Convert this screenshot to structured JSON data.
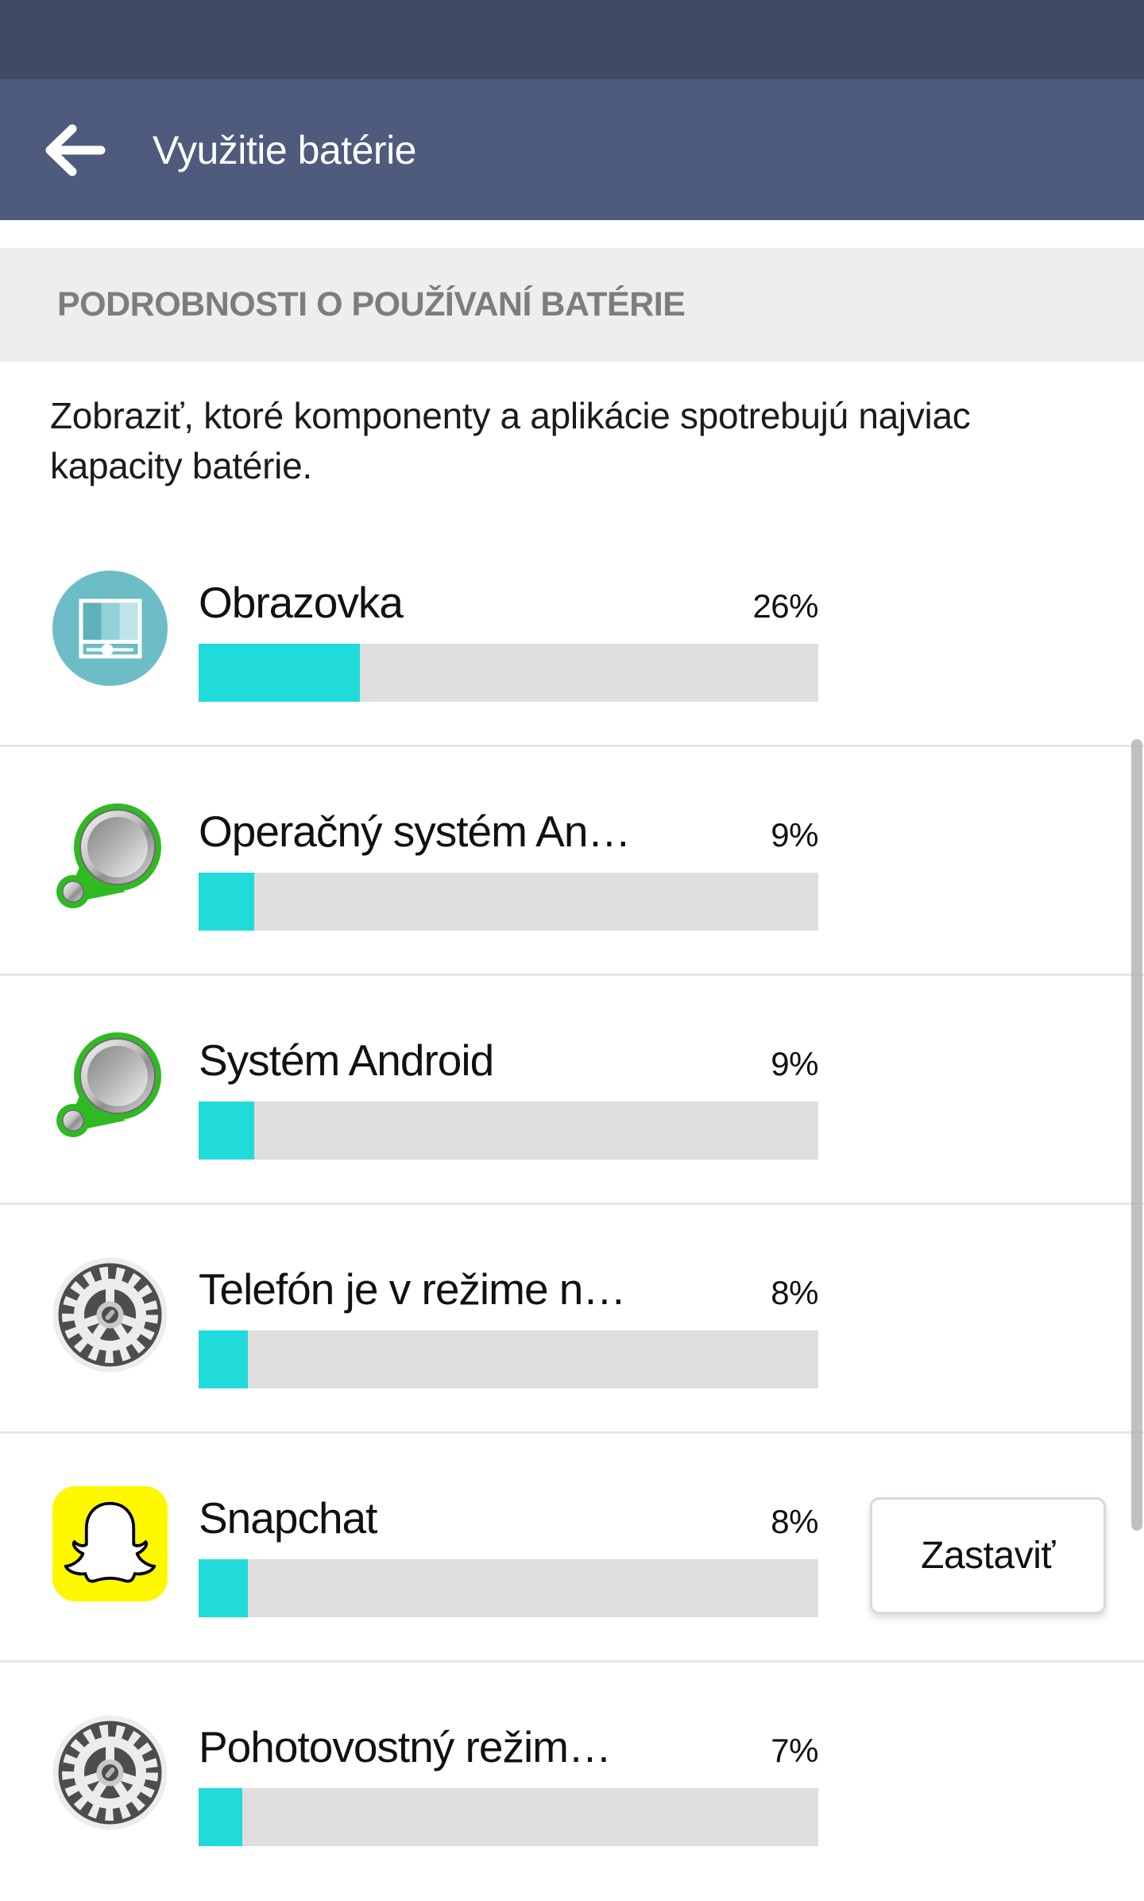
{
  "app_bar": {
    "title": "Využitie batérie",
    "back_icon": "arrow-left"
  },
  "section": {
    "header": "PODROBNOSTI O POUŽÍVANÍ BATÉRIE",
    "description": "Zobraziť, ktoré komponenty a aplikácie spotrebujú najviac kapacity batérie."
  },
  "battery_items": [
    {
      "label": "Obrazovka",
      "percent": 26,
      "percent_label": "26%",
      "icon": "display-icon"
    },
    {
      "label": "Operačný systém An…",
      "percent": 9,
      "percent_label": "9%",
      "icon": "android-os-icon"
    },
    {
      "label": "Systém Android",
      "percent": 9,
      "percent_label": "9%",
      "icon": "android-os-icon"
    },
    {
      "label": "Telefón je v režime n…",
      "percent": 8,
      "percent_label": "8%",
      "icon": "gear-icon"
    },
    {
      "label": "Snapchat",
      "percent": 8,
      "percent_label": "8%",
      "icon": "snapchat-icon",
      "action_label": "Zastaviť"
    },
    {
      "label": "Pohotovostný režim…",
      "percent": 7,
      "percent_label": "7%",
      "icon": "gear-icon"
    }
  ],
  "colors": {
    "status_bar": "#3f4a63",
    "app_bar": "#4e5b7c",
    "accent": "#20dbd9",
    "bar_track": "#dedede",
    "section_header_bg": "#eeeeee",
    "section_header_text": "#7d7d7d",
    "snapchat_yellow": "#fdf800",
    "android_green": "#2fb922",
    "screen_icon_teal": "#6cbdc6"
  }
}
